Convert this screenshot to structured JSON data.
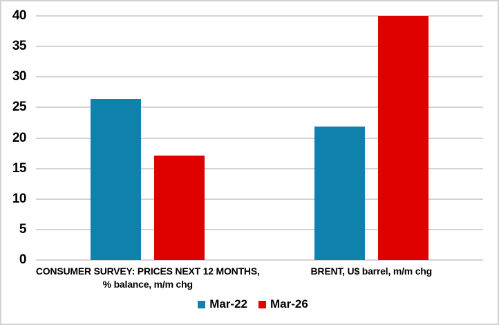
{
  "chart_data": {
    "type": "bar",
    "title": "",
    "xlabel": "",
    "ylabel": "",
    "categories": [
      {
        "lines": [
          "CONSUMER SURVEY: PRICES NEXT 12 MONTHS,",
          "% balance, m/m chg"
        ]
      },
      {
        "lines": [
          "BRENT, U$ barrel, m/m chg"
        ]
      }
    ],
    "series": [
      {
        "name": "Mar-22",
        "color": "#0E81AD",
        "values": [
          26.4,
          21.9
        ]
      },
      {
        "name": "Mar-26",
        "color": "#DF0000",
        "values": [
          17.1,
          40
        ]
      }
    ],
    "ylim": [
      0,
      40
    ],
    "yticks": [
      0,
      5,
      10,
      15,
      20,
      25,
      30,
      35,
      40
    ],
    "grid": true,
    "gridline_color": "#D3D3D3",
    "legend_position": "bottom"
  },
  "colors": {
    "background": "#FFFFFF",
    "border": "#D1D1D1",
    "text": "#000000",
    "series_blue": "#0E81AD",
    "series_red": "#DF0000"
  }
}
